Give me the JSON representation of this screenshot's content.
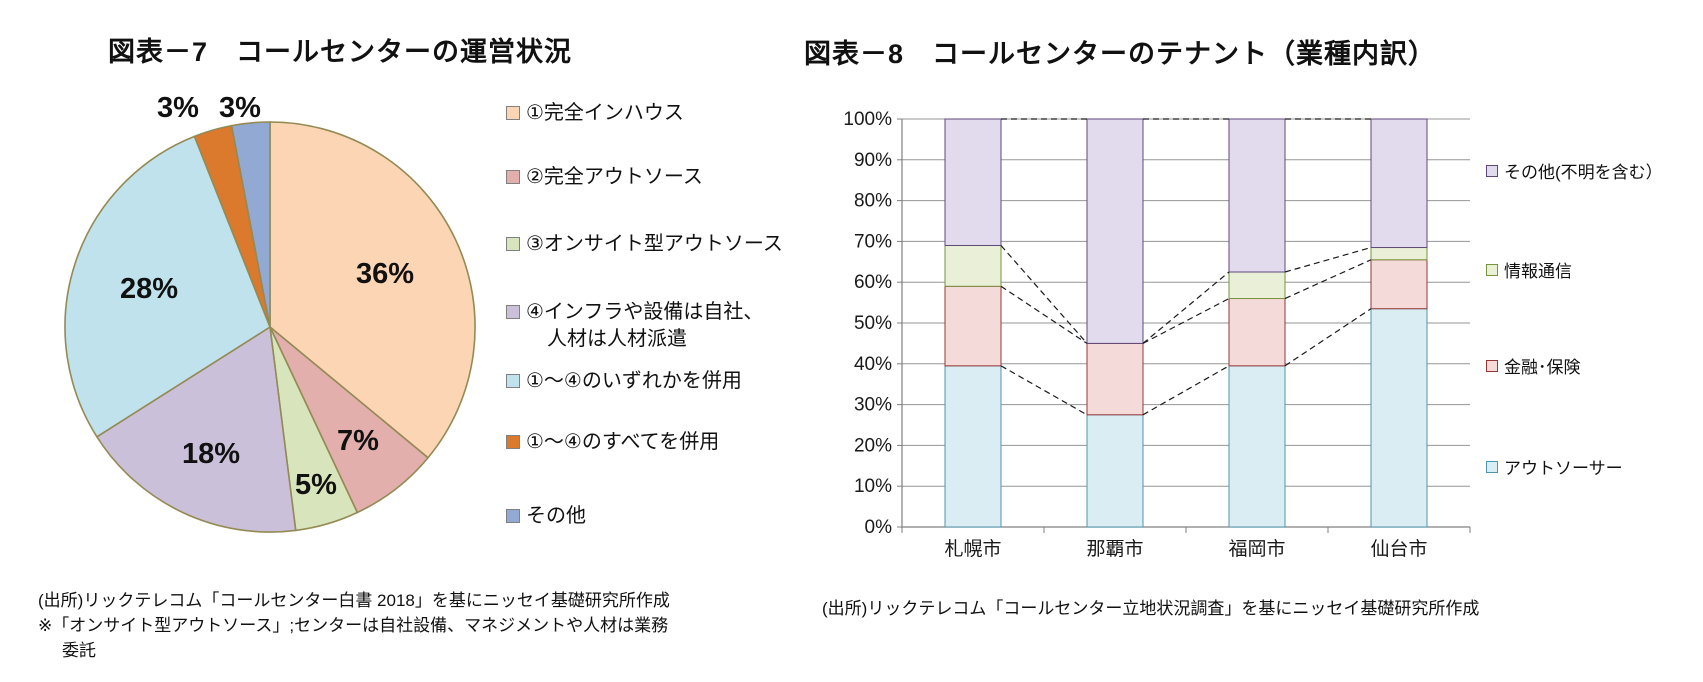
{
  "chart_data": [
    {
      "type": "pie",
      "title": "図表－7　コールセンターの運営状況",
      "categories": [
        "①完全インハウス",
        "②完全アウトソース",
        "③オンサイト型アウトソース",
        "④インフラや設備は自社、人材は人材派遣",
        "①～④のいずれかを併用",
        "①～④のすべてを併用",
        "その他"
      ],
      "values": [
        36,
        7,
        5,
        18,
        28,
        3,
        3
      ],
      "data_labels": [
        "36%",
        "7%",
        "5%",
        "18%",
        "28%",
        "3%",
        "3%"
      ],
      "slice_colors": [
        "#FCD5B4",
        "#E2AFAD",
        "#D7E4BC",
        "#CBC0D9",
        "#BFE2EC",
        "#DB792D",
        "#92A9D4"
      ],
      "slice_stroke": "#948A54",
      "legend_position": "right",
      "legend": [
        {
          "lines": [
            "①完全インハウス"
          ]
        },
        {
          "lines": [
            "②完全アウトソース"
          ]
        },
        {
          "lines": [
            "③オンサイト型アウトソース"
          ]
        },
        {
          "lines": [
            "④インフラや設備は自社、",
            "人材は人材派遣"
          ]
        },
        {
          "lines": [
            "①～④のいずれかを併用"
          ]
        },
        {
          "lines": [
            "①～④のすべてを併用"
          ]
        },
        {
          "lines": [
            "その他"
          ]
        }
      ],
      "source_lines": [
        "(出所)リックテレコム「コールセンター白書 2018」を基にニッセイ基礎研究所作成",
        "※「オンサイト型アウトソース」;センターは自社設備、マネジメントや人材は業務",
        "委託"
      ]
    },
    {
      "type": "bar",
      "subtype": "stacked-100",
      "title": "図表－8　コールセンターのテナント（業種内訳）",
      "categories": [
        "札幌市",
        "那覇市",
        "福岡市",
        "仙台市"
      ],
      "series": [
        {
          "name": "アウトソーサー",
          "values": [
            39.5,
            27.5,
            39.5,
            53.5
          ],
          "fill": "#DAEDF3",
          "stroke": "#4E94AC"
        },
        {
          "name": "金融･保険",
          "values": [
            19.5,
            17.5,
            16.5,
            12
          ],
          "fill": "#F4DBDA",
          "stroke": "#953735"
        },
        {
          "name": "情報通信",
          "values": [
            10,
            0,
            6.5,
            3
          ],
          "fill": "#EAF0D8",
          "stroke": "#77933C"
        },
        {
          "name": "その他(不明を含む）",
          "values": [
            31,
            55,
            37.5,
            31.5
          ],
          "fill": "#E2DBED",
          "stroke": "#5F497A"
        }
      ],
      "y_ticks": [
        "0%",
        "10%",
        "20%",
        "30%",
        "40%",
        "50%",
        "60%",
        "70%",
        "80%",
        "90%",
        "100%"
      ],
      "ylim": [
        0,
        100
      ],
      "grid": true,
      "series_connector_lines": "dashed",
      "legend_position": "right",
      "legend_order": [
        3,
        2,
        1,
        0
      ],
      "source_lines": [
        "(出所)リックテレコム「コールセンター立地状況調査」を基にニッセイ基礎研究所作成"
      ]
    }
  ]
}
